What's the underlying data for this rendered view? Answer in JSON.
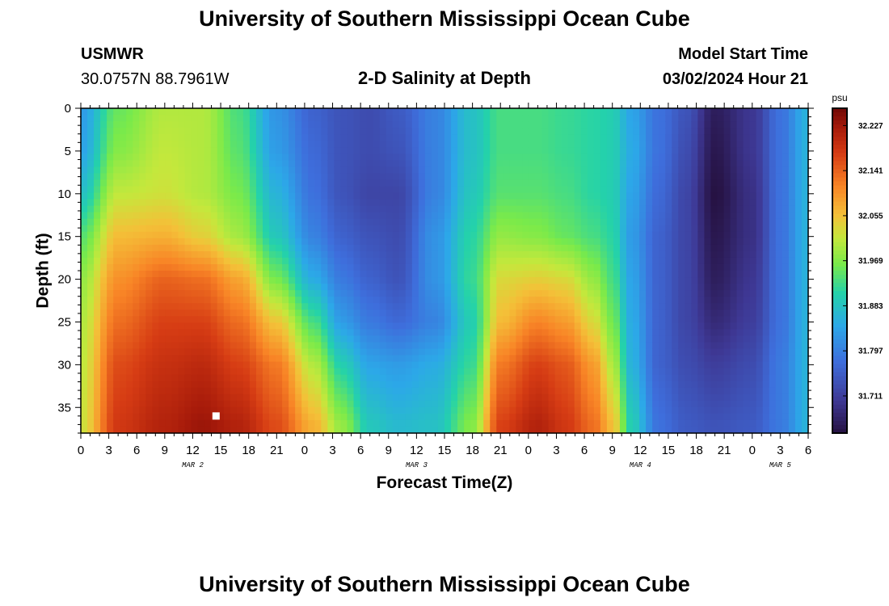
{
  "header": {
    "title": "University of Southern Mississippi Ocean Cube",
    "station": "USMWR",
    "coords": "30.0757N  88.7961W",
    "subtitle": "2-D Salinity at Depth",
    "model_start_label": "Model Start Time",
    "model_start_value": "03/02/2024 Hour 21"
  },
  "footer": {
    "title": "University of Southern Mississippi Ocean Cube"
  },
  "chart_data": {
    "type": "heatmap",
    "title": "2-D Salinity at Depth",
    "xlabel": "Forecast Time(Z)",
    "ylabel": "Depth (ft)",
    "ylim": [
      0,
      38
    ],
    "y_ticks": [
      0,
      5,
      10,
      15,
      20,
      25,
      30,
      35
    ],
    "x_hours_range": [
      0,
      78
    ],
    "x_tick_labels": [
      "0",
      "3",
      "6",
      "9",
      "12",
      "15",
      "18",
      "21",
      "0",
      "3",
      "6",
      "9",
      "12",
      "15",
      "18",
      "21",
      "0",
      "3",
      "6",
      "9",
      "12",
      "15",
      "18",
      "21",
      "0",
      "3",
      "6"
    ],
    "day_labels": [
      {
        "label": "MAR 2",
        "hour": 12
      },
      {
        "label": "MAR 3",
        "hour": 36
      },
      {
        "label": "MAR 4",
        "hour": 60
      },
      {
        "label": "MAR 5",
        "hour": 75
      }
    ],
    "colorbar": {
      "unit": "psu",
      "ticks": [
        "32.227",
        "32.141",
        "32.055",
        "31.969",
        "31.883",
        "31.797",
        "31.711"
      ],
      "min": 31.64,
      "max": 32.26
    },
    "marker": {
      "hour": 14.5,
      "depth": 36
    },
    "profiles": [
      {
        "hour": 0,
        "values": [
          31.83,
          31.84,
          31.88,
          31.94,
          31.98,
          32.0,
          32.01,
          32.02
        ]
      },
      {
        "hour": 4,
        "values": [
          31.95,
          31.97,
          32.01,
          32.06,
          32.1,
          32.13,
          32.16,
          32.18
        ]
      },
      {
        "hour": 9,
        "values": [
          32.0,
          32.01,
          32.02,
          32.07,
          32.14,
          32.17,
          32.19,
          32.21
        ]
      },
      {
        "hour": 13,
        "values": [
          32.0,
          32.0,
          32.0,
          32.04,
          32.13,
          32.17,
          32.2,
          32.23
        ]
      },
      {
        "hour": 17,
        "values": [
          31.93,
          31.94,
          31.96,
          31.99,
          32.08,
          32.13,
          32.17,
          32.21
        ]
      },
      {
        "hour": 21,
        "values": [
          31.82,
          31.83,
          31.86,
          31.89,
          31.96,
          32.05,
          32.12,
          32.16
        ]
      },
      {
        "hour": 25,
        "values": [
          31.76,
          31.77,
          31.78,
          31.8,
          31.85,
          31.93,
          32.0,
          32.07
        ]
      },
      {
        "hour": 28,
        "values": [
          31.74,
          31.74,
          31.74,
          31.76,
          31.79,
          31.83,
          31.9,
          31.98
        ]
      },
      {
        "hour": 31,
        "values": [
          31.73,
          31.73,
          31.72,
          31.74,
          31.76,
          31.79,
          31.84,
          31.89
        ]
      },
      {
        "hour": 34,
        "values": [
          31.75,
          31.74,
          31.72,
          31.73,
          31.74,
          31.77,
          31.83,
          31.87
        ]
      },
      {
        "hour": 38,
        "values": [
          31.8,
          31.8,
          31.8,
          31.82,
          31.82,
          31.8,
          31.85,
          31.88
        ]
      },
      {
        "hour": 42,
        "values": [
          31.88,
          31.88,
          31.89,
          31.91,
          31.92,
          31.9,
          31.92,
          31.97
        ]
      },
      {
        "hour": 45,
        "values": [
          31.93,
          31.93,
          31.94,
          31.98,
          32.03,
          32.06,
          32.12,
          32.17
        ]
      },
      {
        "hour": 49,
        "values": [
          31.93,
          31.93,
          31.94,
          31.97,
          32.04,
          32.11,
          32.17,
          32.21
        ]
      },
      {
        "hour": 52,
        "values": [
          31.92,
          31.92,
          31.93,
          31.95,
          32.03,
          32.09,
          32.15,
          32.18
        ]
      },
      {
        "hour": 55,
        "values": [
          31.91,
          31.91,
          31.91,
          31.93,
          31.98,
          32.03,
          32.09,
          32.13
        ]
      },
      {
        "hour": 57,
        "values": [
          31.9,
          31.9,
          31.9,
          31.91,
          31.93,
          31.96,
          32.0,
          32.06
        ]
      },
      {
        "hour": 59,
        "values": [
          31.84,
          31.85,
          31.84,
          31.83,
          31.84,
          31.85,
          31.86,
          31.9
        ]
      },
      {
        "hour": 62,
        "values": [
          31.78,
          31.78,
          31.77,
          31.76,
          31.76,
          31.76,
          31.76,
          31.78
        ]
      },
      {
        "hour": 65,
        "values": [
          31.74,
          31.73,
          31.72,
          31.72,
          31.72,
          31.72,
          31.73,
          31.75
        ]
      },
      {
        "hour": 68,
        "values": [
          31.66,
          31.65,
          31.64,
          31.65,
          31.66,
          31.68,
          31.71,
          31.74
        ]
      },
      {
        "hour": 72,
        "values": [
          31.7,
          31.7,
          31.69,
          31.69,
          31.7,
          31.71,
          31.73,
          31.75
        ]
      },
      {
        "hour": 75,
        "values": [
          31.78,
          31.78,
          31.78,
          31.78,
          31.78,
          31.78,
          31.79,
          31.79
        ]
      },
      {
        "hour": 78,
        "values": [
          31.86,
          31.86,
          31.86,
          31.86,
          31.86,
          31.86,
          31.86,
          31.86
        ]
      }
    ]
  }
}
